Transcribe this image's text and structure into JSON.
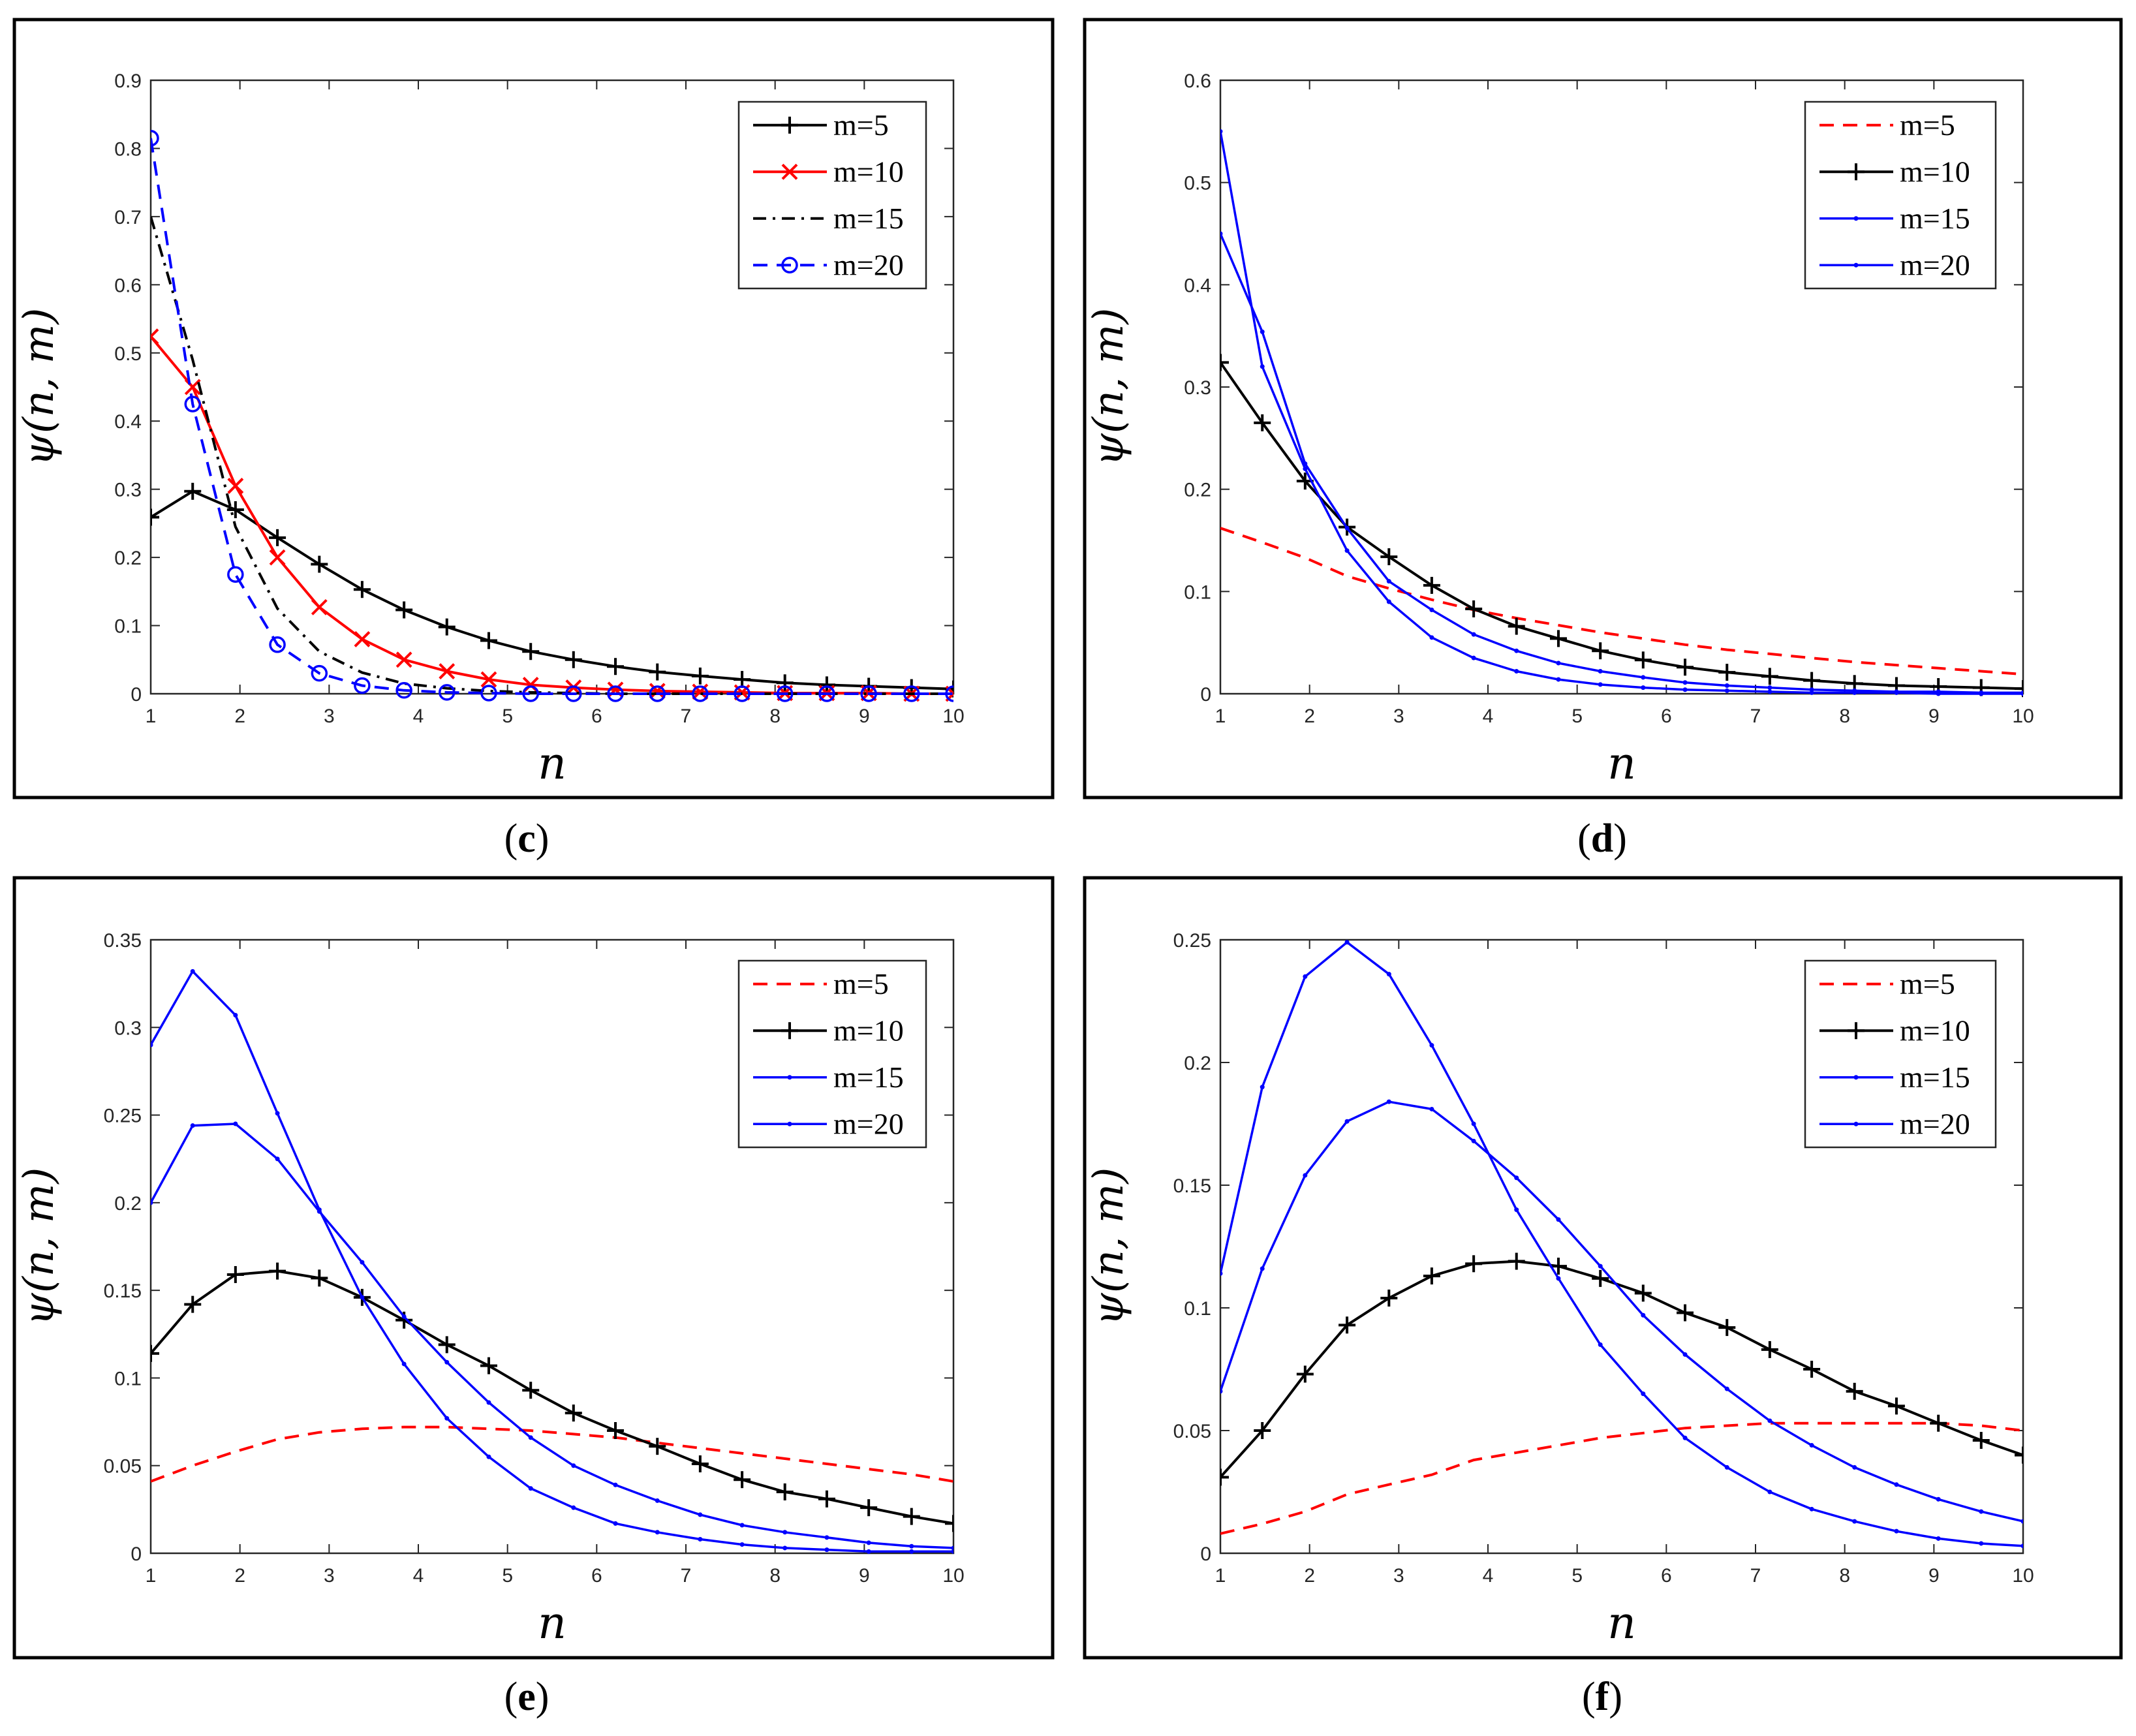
{
  "colors": {
    "black": "#000000",
    "red": "#ff0000",
    "blue": "#0000ff"
  },
  "chart_data": [
    {
      "type": "line",
      "caption": "c",
      "title": "",
      "xlabel": "n",
      "ylabel": "ψ(n, m)",
      "xlim": [
        1,
        10
      ],
      "ylim": [
        0,
        0.9
      ],
      "xticks": [
        "1",
        "2",
        "3",
        "4",
        "5",
        "6",
        "7",
        "8",
        "9",
        "10"
      ],
      "yticks": [
        "0",
        "0.1",
        "0.2",
        "0.3",
        "0.4",
        "0.5",
        "0.6",
        "0.7",
        "0.8",
        "0.9"
      ],
      "legend_position": "top-right",
      "grid": false,
      "series": [
        {
          "name": "m=5",
          "color": "#000000",
          "style": "solid",
          "marker": "plus",
          "x": [
            1,
            1.47,
            1.95,
            2.42,
            2.89,
            3.37,
            3.84,
            4.32,
            4.79,
            5.26,
            5.74,
            6.21,
            6.68,
            7.16,
            7.63,
            8.11,
            8.58,
            9.05,
            9.53,
            10
          ],
          "y": [
            0.259,
            0.297,
            0.27,
            0.229,
            0.19,
            0.153,
            0.123,
            0.098,
            0.078,
            0.062,
            0.05,
            0.04,
            0.032,
            0.026,
            0.021,
            0.016,
            0.013,
            0.011,
            0.009,
            0.007
          ]
        },
        {
          "name": "m=10",
          "color": "#ff0000",
          "style": "solid",
          "marker": "x",
          "x": [
            1,
            1.47,
            1.95,
            2.42,
            2.89,
            3.37,
            3.84,
            4.32,
            4.79,
            5.26,
            5.74,
            6.21,
            6.68,
            7.16,
            7.63,
            8.11,
            8.58,
            9.05,
            9.53,
            10
          ],
          "y": [
            0.524,
            0.45,
            0.305,
            0.2,
            0.127,
            0.08,
            0.05,
            0.033,
            0.021,
            0.013,
            0.009,
            0.006,
            0.004,
            0.003,
            0.002,
            0.001,
            0.001,
            0.001,
            0,
            0
          ]
        },
        {
          "name": "m=15",
          "color": "#000000",
          "style": "dashdot",
          "marker": "none",
          "x": [
            1,
            1.47,
            1.95,
            2.42,
            2.89,
            3.37,
            3.84,
            4.32,
            4.79,
            5.26,
            5.74,
            6.21,
            6.68,
            7.16,
            7.63,
            8.11,
            8.58,
            9.05,
            9.53,
            10
          ],
          "y": [
            0.7,
            0.49,
            0.245,
            0.125,
            0.062,
            0.031,
            0.015,
            0.008,
            0.004,
            0.002,
            0.001,
            0,
            0,
            0,
            0,
            0,
            0,
            0,
            0,
            0
          ]
        },
        {
          "name": "m=20",
          "color": "#0000ff",
          "style": "dashed",
          "marker": "circle",
          "x": [
            1,
            1.47,
            1.95,
            2.42,
            2.89,
            3.37,
            3.84,
            4.32,
            4.79,
            5.26,
            5.74,
            6.21,
            6.68,
            7.16,
            7.63,
            8.11,
            8.58,
            9.05,
            9.53,
            10
          ],
          "y": [
            0.815,
            0.425,
            0.175,
            0.072,
            0.03,
            0.012,
            0.005,
            0.002,
            0.001,
            0,
            0,
            0,
            0,
            0,
            0,
            0,
            0,
            0,
            0,
            0
          ]
        }
      ]
    },
    {
      "type": "line",
      "caption": "d",
      "title": "",
      "xlabel": "n",
      "ylabel": "ψ(n, m)",
      "xlim": [
        1,
        10
      ],
      "ylim": [
        0,
        0.6
      ],
      "xticks": [
        "1",
        "2",
        "3",
        "4",
        "5",
        "6",
        "7",
        "8",
        "9",
        "10"
      ],
      "yticks": [
        "0",
        "0.1",
        "0.2",
        "0.3",
        "0.4",
        "0.5",
        "0.6"
      ],
      "legend_position": "top-right",
      "grid": false,
      "series": [
        {
          "name": "m=5",
          "color": "#ff0000",
          "style": "dashed",
          "marker": "none",
          "x": [
            1,
            1.47,
            1.95,
            2.42,
            2.89,
            3.37,
            3.84,
            4.32,
            4.79,
            5.26,
            5.74,
            6.21,
            6.68,
            7.16,
            7.63,
            8.11,
            8.58,
            9.05,
            9.53,
            10
          ],
          "y": [
            0.162,
            0.148,
            0.133,
            0.115,
            0.103,
            0.092,
            0.082,
            0.074,
            0.067,
            0.06,
            0.054,
            0.048,
            0.043,
            0.039,
            0.035,
            0.031,
            0.028,
            0.025,
            0.022,
            0.019
          ]
        },
        {
          "name": "m=10",
          "color": "#000000",
          "style": "solid",
          "marker": "plus",
          "x": [
            1,
            1.47,
            1.95,
            2.42,
            2.89,
            3.37,
            3.84,
            4.32,
            4.79,
            5.26,
            5.74,
            6.21,
            6.68,
            7.16,
            7.63,
            8.11,
            8.58,
            9.05,
            9.53,
            10
          ],
          "y": [
            0.324,
            0.265,
            0.208,
            0.163,
            0.134,
            0.106,
            0.083,
            0.066,
            0.054,
            0.042,
            0.033,
            0.026,
            0.021,
            0.017,
            0.013,
            0.01,
            0.008,
            0.007,
            0.006,
            0.005
          ]
        },
        {
          "name": "m=15",
          "color": "#0000ff",
          "style": "solid",
          "marker": "dot",
          "x": [
            1,
            1.47,
            1.95,
            2.42,
            2.89,
            3.37,
            3.84,
            4.32,
            4.79,
            5.26,
            5.74,
            6.21,
            6.68,
            7.16,
            7.63,
            8.11,
            8.58,
            9.05,
            9.53,
            10
          ],
          "y": [
            0.45,
            0.354,
            0.225,
            0.162,
            0.11,
            0.082,
            0.058,
            0.042,
            0.03,
            0.022,
            0.016,
            0.011,
            0.008,
            0.006,
            0.004,
            0.003,
            0.002,
            0.002,
            0.001,
            0.001
          ]
        },
        {
          "name": "m=20",
          "color": "#0000ff",
          "style": "solid",
          "marker": "dot",
          "x": [
            1,
            1.47,
            1.95,
            2.42,
            2.89,
            3.37,
            3.84,
            4.32,
            4.79,
            5.26,
            5.74,
            6.21,
            6.68,
            7.16,
            7.63,
            8.11,
            8.58,
            9.05,
            9.53,
            10
          ],
          "y": [
            0.55,
            0.32,
            0.22,
            0.14,
            0.09,
            0.055,
            0.035,
            0.022,
            0.014,
            0.009,
            0.006,
            0.004,
            0.003,
            0.002,
            0.001,
            0.001,
            0.001,
            0,
            0,
            0
          ]
        }
      ]
    },
    {
      "type": "line",
      "caption": "e",
      "title": "",
      "xlabel": "n",
      "ylabel": "ψ(n, m)",
      "xlim": [
        1,
        10
      ],
      "ylim": [
        0,
        0.35
      ],
      "xticks": [
        "1",
        "2",
        "3",
        "4",
        "5",
        "6",
        "7",
        "8",
        "9",
        "10"
      ],
      "yticks": [
        "0",
        "0.05",
        "0.1",
        "0.15",
        "0.2",
        "0.25",
        "0.3",
        "0.35"
      ],
      "legend_position": "top-right",
      "grid": false,
      "series": [
        {
          "name": "m=5",
          "color": "#ff0000",
          "style": "dashed",
          "marker": "none",
          "x": [
            1,
            1.47,
            1.95,
            2.42,
            2.89,
            3.37,
            3.84,
            4.32,
            4.79,
            5.26,
            5.74,
            6.21,
            6.68,
            7.16,
            7.63,
            8.11,
            8.58,
            9.05,
            9.53,
            10
          ],
          "y": [
            0.041,
            0.05,
            0.058,
            0.065,
            0.069,
            0.071,
            0.072,
            0.072,
            0.071,
            0.07,
            0.068,
            0.066,
            0.063,
            0.06,
            0.057,
            0.054,
            0.051,
            0.048,
            0.045,
            0.041
          ]
        },
        {
          "name": "m=10",
          "color": "#000000",
          "style": "solid",
          "marker": "plus",
          "x": [
            1,
            1.47,
            1.95,
            2.42,
            2.89,
            3.37,
            3.84,
            4.32,
            4.79,
            5.26,
            5.74,
            6.21,
            6.68,
            7.16,
            7.63,
            8.11,
            8.58,
            9.05,
            9.53,
            10
          ],
          "y": [
            0.114,
            0.142,
            0.159,
            0.161,
            0.157,
            0.146,
            0.133,
            0.119,
            0.107,
            0.093,
            0.08,
            0.07,
            0.061,
            0.051,
            0.042,
            0.035,
            0.031,
            0.026,
            0.021,
            0.017
          ]
        },
        {
          "name": "m=15",
          "color": "#0000ff",
          "style": "solid",
          "marker": "dot",
          "x": [
            1,
            1.47,
            1.95,
            2.42,
            2.89,
            3.37,
            3.84,
            4.32,
            4.79,
            5.26,
            5.74,
            6.21,
            6.68,
            7.16,
            7.63,
            8.11,
            8.58,
            9.05,
            9.53,
            10
          ],
          "y": [
            0.2,
            0.244,
            0.245,
            0.225,
            0.195,
            0.166,
            0.135,
            0.109,
            0.086,
            0.066,
            0.05,
            0.039,
            0.03,
            0.022,
            0.016,
            0.012,
            0.009,
            0.006,
            0.004,
            0.003
          ]
        },
        {
          "name": "m=20",
          "color": "#0000ff",
          "style": "solid",
          "marker": "dot",
          "x": [
            1,
            1.47,
            1.95,
            2.42,
            2.89,
            3.37,
            3.84,
            4.32,
            4.79,
            5.26,
            5.74,
            6.21,
            6.68,
            7.16,
            7.63,
            8.11,
            8.58,
            9.05,
            9.53,
            10
          ],
          "y": [
            0.29,
            0.332,
            0.307,
            0.251,
            0.196,
            0.146,
            0.108,
            0.077,
            0.055,
            0.037,
            0.026,
            0.017,
            0.012,
            0.008,
            0.005,
            0.003,
            0.002,
            0.001,
            0.001,
            0.001
          ]
        }
      ]
    },
    {
      "type": "line",
      "caption": "f",
      "title": "",
      "xlabel": "n",
      "ylabel": "ψ(n, m)",
      "xlim": [
        1,
        10
      ],
      "ylim": [
        0,
        0.25
      ],
      "xticks": [
        "1",
        "2",
        "3",
        "4",
        "5",
        "6",
        "7",
        "8",
        "9",
        "10"
      ],
      "yticks": [
        "0",
        "0.05",
        "0.1",
        "0.15",
        "0.2",
        "0.25"
      ],
      "legend_position": "top-right",
      "grid": false,
      "series": [
        {
          "name": "m=5",
          "color": "#ff0000",
          "style": "dashed",
          "marker": "none",
          "x": [
            1,
            1.47,
            1.95,
            2.42,
            2.89,
            3.37,
            3.84,
            4.32,
            4.79,
            5.26,
            5.74,
            6.21,
            6.68,
            7.16,
            7.63,
            8.11,
            8.58,
            9.05,
            9.53,
            10
          ],
          "y": [
            0.008,
            0.012,
            0.017,
            0.024,
            0.028,
            0.032,
            0.038,
            0.041,
            0.044,
            0.047,
            0.049,
            0.051,
            0.052,
            0.053,
            0.053,
            0.053,
            0.053,
            0.053,
            0.052,
            0.05
          ]
        },
        {
          "name": "m=10",
          "color": "#000000",
          "style": "solid",
          "marker": "plus",
          "x": [
            1,
            1.47,
            1.95,
            2.42,
            2.89,
            3.37,
            3.84,
            4.32,
            4.79,
            5.26,
            5.74,
            6.21,
            6.68,
            7.16,
            7.63,
            8.11,
            8.58,
            9.05,
            9.53,
            10
          ],
          "y": [
            0.031,
            0.05,
            0.073,
            0.093,
            0.104,
            0.113,
            0.118,
            0.119,
            0.117,
            0.112,
            0.106,
            0.098,
            0.092,
            0.083,
            0.075,
            0.066,
            0.06,
            0.053,
            0.046,
            0.04
          ]
        },
        {
          "name": "m=15",
          "color": "#0000ff",
          "style": "solid",
          "marker": "dot",
          "x": [
            1,
            1.47,
            1.95,
            2.42,
            2.89,
            3.37,
            3.84,
            4.32,
            4.79,
            5.26,
            5.74,
            6.21,
            6.68,
            7.16,
            7.63,
            8.11,
            8.58,
            9.05,
            9.53,
            10
          ],
          "y": [
            0.066,
            0.116,
            0.154,
            0.176,
            0.184,
            0.181,
            0.168,
            0.153,
            0.136,
            0.117,
            0.097,
            0.081,
            0.067,
            0.054,
            0.044,
            0.035,
            0.028,
            0.022,
            0.017,
            0.013
          ]
        },
        {
          "name": "m=20",
          "color": "#0000ff",
          "style": "solid",
          "marker": "dot",
          "x": [
            1,
            1.47,
            1.95,
            2.42,
            2.89,
            3.37,
            3.84,
            4.32,
            4.79,
            5.26,
            5.74,
            6.21,
            6.68,
            7.16,
            7.63,
            8.11,
            8.58,
            9.05,
            9.53,
            10
          ],
          "y": [
            0.114,
            0.19,
            0.235,
            0.249,
            0.236,
            0.207,
            0.175,
            0.14,
            0.112,
            0.085,
            0.065,
            0.047,
            0.035,
            0.025,
            0.018,
            0.013,
            0.009,
            0.006,
            0.004,
            0.003
          ]
        }
      ]
    }
  ]
}
